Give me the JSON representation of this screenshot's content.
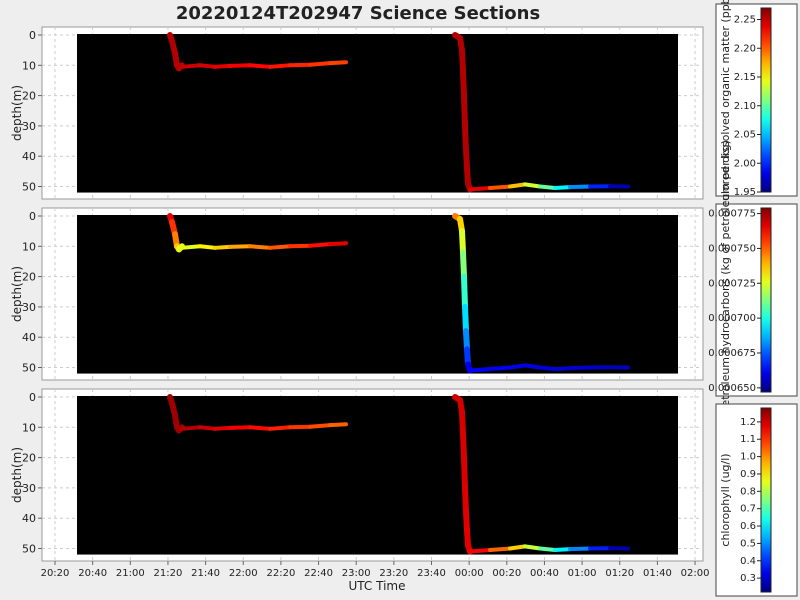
{
  "chart_data": {
    "type": "scatter",
    "title": "20220124T202947 Science Sections",
    "xlabel": "UTC Time",
    "x_ticks": [
      "20:20",
      "20:40",
      "21:00",
      "21:20",
      "21:40",
      "22:00",
      "22:20",
      "22:40",
      "23:00",
      "23:20",
      "23:40",
      "00:00",
      "00:20",
      "00:40",
      "01:00",
      "01:20",
      "01:40",
      "02:00"
    ],
    "grid": true,
    "panels": [
      {
        "ylabel": "depth(m)",
        "y_ticks": [
          "0",
          "10",
          "20",
          "30",
          "40",
          "50"
        ],
        "ylim": [
          0,
          52
        ],
        "colorbar_label": "colored dissolved organic matter (ppb)",
        "colorbar_ticks": [
          "1.95",
          "2.00",
          "2.05",
          "2.10",
          "2.15",
          "2.20",
          "2.25"
        ],
        "colorbar_range": [
          1.95,
          2.27
        ]
      },
      {
        "ylabel": "depth(m)",
        "y_ticks": [
          "0",
          "10",
          "20",
          "30",
          "40",
          "50"
        ],
        "ylim": [
          0,
          52
        ],
        "colorbar_label": "WL UVA petroleum hydrocarbons (kg of petroleum per kg)",
        "colorbar_ticks": [
          "0.000650",
          "0.000675",
          "0.000700",
          "0.000725",
          "0.000750",
          "0.000775"
        ],
        "colorbar_range": [
          0.000647,
          0.000779
        ]
      },
      {
        "ylabel": "depth(m)",
        "y_ticks": [
          "0",
          "10",
          "20",
          "30",
          "40",
          "50"
        ],
        "ylim": [
          0,
          52
        ],
        "colorbar_label": "chlorophyll (ug/l)",
        "colorbar_ticks": [
          "0.3",
          "0.4",
          "0.5",
          "0.6",
          "0.7",
          "0.8",
          "0.9",
          "1.0",
          "1.1",
          "1.2"
        ],
        "colorbar_range": [
          0.22,
          1.28
        ]
      }
    ]
  }
}
